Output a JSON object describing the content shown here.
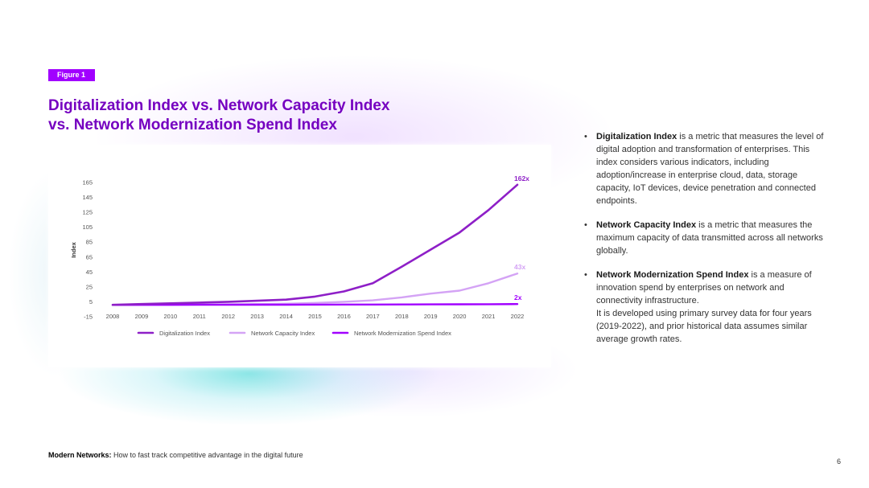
{
  "figure_label": "Figure 1",
  "title": {
    "line1": "Digitalization Index vs. Network Capacity Index",
    "line2": "vs. Network Modernization Spend Index"
  },
  "colors": {
    "brand": "#a100ff",
    "title": "#7500c0",
    "digitalization": "#8e1fc7",
    "network_capacity": "#d4a3f5",
    "network_modernization": "#a100ff"
  },
  "chart_data": {
    "type": "line",
    "title": "",
    "xlabel": "",
    "ylabel": "Index",
    "ylim": [
      -15,
      165
    ],
    "y_ticks": [
      165,
      145,
      125,
      105,
      85,
      65,
      45,
      25,
      5,
      -15
    ],
    "categories": [
      "2008",
      "2009",
      "2010",
      "2011",
      "2012",
      "2013",
      "2014",
      "2015",
      "2016",
      "2017",
      "2018",
      "2019",
      "2020",
      "2021",
      "2022"
    ],
    "series": [
      {
        "name": "Digitalization Index",
        "values": [
          1,
          2,
          3,
          4,
          5,
          6.5,
          8,
          12,
          19,
          30,
          52,
          75,
          98,
          128,
          162
        ],
        "end_label": "162x"
      },
      {
        "name": "Network Capacity Index",
        "values": [
          1,
          1.2,
          1.4,
          1.6,
          1.8,
          2,
          2.5,
          3.5,
          5,
          7,
          11,
          16,
          20,
          30,
          43
        ],
        "end_label": "43x"
      },
      {
        "name": "Network Modernization Spend Index",
        "values": [
          0.8,
          0.9,
          1,
          1.05,
          1.1,
          1.15,
          1.2,
          1.3,
          1.35,
          1.4,
          1.5,
          1.6,
          1.7,
          1.85,
          2
        ],
        "end_label": "2x"
      }
    ],
    "grid": false,
    "legend": "bottom"
  },
  "bullets": [
    {
      "bold": "Digitalization Index",
      "text": " is a metric that measures the level of digital adoption and transformation of enterprises. This index considers various indicators, including adoption/increase in enterprise cloud, data, storage capacity, IoT devices, device penetration and connected endpoints."
    },
    {
      "bold": "Network Capacity Index",
      "text": " is a metric that measures the maximum capacity of data transmitted across all networks globally."
    },
    {
      "bold": "Network Modernization Spend Index",
      "text": " is a measure of innovation spend by enterprises on network and connectivity infrastructure.",
      "extra": "It is developed using primary survey data for four years (2019-2022), and prior historical data assumes similar average growth rates."
    }
  ],
  "footer": {
    "bold": "Modern Networks:",
    "text": " How to fast track competitive advantage in the digital future"
  },
  "page_number": "6"
}
